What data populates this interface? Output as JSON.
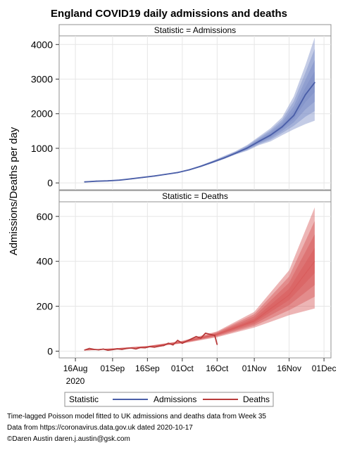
{
  "title": "England COVID19 daily admissions and deaths",
  "ylabel": "Admissions/Deaths per day",
  "legend": {
    "title": "Statistic",
    "items": [
      "Admissions",
      "Deaths"
    ]
  },
  "footnotes": [
    "Time-lagged Poisson model fitted to UK admissions and deaths data from Week 35",
    "Data from https://coronavirus.data.gov.uk dated 2020-10-17",
    "©Daren Austin daren.j.austin@gsk.com"
  ],
  "colors": {
    "admissions": "#4a5ea8",
    "admissions_band": "#7d8ec7",
    "deaths": "#b83a3a",
    "deaths_band": "#d85c5c",
    "grid": "#e6e6e6"
  },
  "chart_data": [
    {
      "type": "line",
      "panel_label": "Statistic = Admissions",
      "x_type": "date",
      "xlim": [
        "2020-08-09",
        "2020-12-04"
      ],
      "ylim": [
        -200,
        4250
      ],
      "yticks": [
        0,
        1000,
        2000,
        3000,
        4000
      ],
      "series": [
        {
          "name": "Admissions",
          "x": [
            "2020-08-20",
            "2020-08-25",
            "2020-08-30",
            "2020-09-04",
            "2020-09-09",
            "2020-09-14",
            "2020-09-19",
            "2020-09-24",
            "2020-09-29",
            "2020-10-04",
            "2020-10-09",
            "2020-10-14",
            "2020-10-19",
            "2020-10-24",
            "2020-10-29",
            "2020-11-03",
            "2020-11-08",
            "2020-11-13",
            "2020-11-18",
            "2020-11-23",
            "2020-11-27"
          ],
          "y": [
            30,
            50,
            60,
            80,
            120,
            160,
            200,
            250,
            300,
            380,
            480,
            600,
            720,
            860,
            1010,
            1200,
            1380,
            1620,
            1950,
            2550,
            2900
          ],
          "band_lower": [
            20,
            40,
            50,
            70,
            110,
            150,
            190,
            240,
            280,
            360,
            460,
            570,
            690,
            820,
            930,
            1090,
            1200,
            1380,
            1550,
            1700,
            1800
          ],
          "band_upper": [
            40,
            60,
            70,
            90,
            130,
            170,
            210,
            270,
            320,
            400,
            510,
            640,
            780,
            920,
            1100,
            1340,
            1580,
            1900,
            2500,
            3400,
            4200
          ]
        }
      ],
      "grid": true
    },
    {
      "type": "line",
      "panel_label": "Statistic = Deaths",
      "x_type": "date",
      "xlim": [
        "2020-08-09",
        "2020-12-04"
      ],
      "ylim": [
        -30,
        665
      ],
      "yticks": [
        0,
        200,
        400,
        600
      ],
      "xticks": [
        "16Aug",
        "01Sep",
        "16Sep",
        "01Oct",
        "16Oct",
        "01Nov",
        "16Nov",
        "01Dec"
      ],
      "xtick_dates": [
        "2020-08-16",
        "2020-09-01",
        "2020-09-16",
        "2020-10-01",
        "2020-10-16",
        "2020-11-01",
        "2020-11-16",
        "2020-12-01"
      ],
      "xtick_year": "2020",
      "series": [
        {
          "name": "Deaths",
          "x": [
            "2020-08-20",
            "2020-08-22",
            "2020-08-24",
            "2020-08-26",
            "2020-08-28",
            "2020-08-30",
            "2020-09-01",
            "2020-09-03",
            "2020-09-05",
            "2020-09-07",
            "2020-09-09",
            "2020-09-11",
            "2020-09-13",
            "2020-09-15",
            "2020-09-17",
            "2020-09-19",
            "2020-09-21",
            "2020-09-23",
            "2020-09-25",
            "2020-09-27",
            "2020-09-29",
            "2020-10-01",
            "2020-10-03",
            "2020-10-05",
            "2020-10-07",
            "2020-10-09",
            "2020-10-11",
            "2020-10-13",
            "2020-10-15",
            "2020-10-16"
          ],
          "y": [
            5,
            12,
            8,
            6,
            9,
            4,
            7,
            10,
            8,
            12,
            14,
            10,
            16,
            15,
            20,
            18,
            22,
            25,
            35,
            28,
            48,
            35,
            45,
            55,
            65,
            58,
            80,
            75,
            70,
            30
          ],
          "fit_x": [
            "2020-08-20",
            "2020-09-01",
            "2020-09-16",
            "2020-10-01",
            "2020-10-16",
            "2020-11-01",
            "2020-11-16",
            "2020-11-27"
          ],
          "fit_y": [
            5,
            10,
            20,
            40,
            75,
            135,
            250,
            400
          ],
          "band_lower": [
            3,
            8,
            17,
            34,
            62,
            105,
            160,
            190
          ],
          "band_upper": [
            7,
            12,
            23,
            46,
            88,
            175,
            360,
            640
          ]
        }
      ],
      "grid": true
    }
  ]
}
